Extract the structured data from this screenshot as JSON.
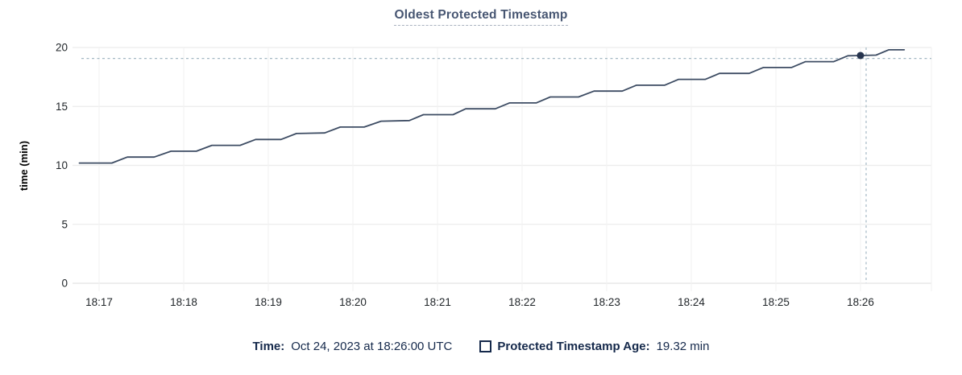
{
  "title": "Oldest Protected Timestamp",
  "colors": {
    "line": "#3d4c63",
    "dot": "#26344e",
    "guideline": "#a3b8c4",
    "grid": "#ececec",
    "grid_vertical": "#f2f2f2",
    "grid_zero": "#e3e3e3",
    "axis_text": "#1f2428",
    "title_text": "#475672",
    "legend_text": "#15294b"
  },
  "legend": {
    "time_label": "Time:",
    "time_value": "Oct 24, 2023 at 18:26:00 UTC",
    "series_label": "Protected Timestamp Age:",
    "series_value": "19.32 min",
    "checkbox_state": "unchecked"
  },
  "chart_data": {
    "type": "line",
    "title": "Oldest Protected Timestamp",
    "xlabel": "",
    "ylabel": "time (min)",
    "ylim": [
      0,
      20
    ],
    "y_ticks": [
      0,
      5,
      10,
      15,
      20
    ],
    "x_ticks": [
      "18:17",
      "18:18",
      "18:19",
      "18:20",
      "18:21",
      "18:22",
      "18:23",
      "18:24",
      "18:25",
      "18:26"
    ],
    "grid": true,
    "legend_position": "bottom",
    "series": [
      {
        "name": "Protected Timestamp Age",
        "unit": "min",
        "points": [
          [
            "18:16:46",
            10.2
          ],
          [
            "18:17:09",
            10.2
          ],
          [
            "18:17:20",
            10.7
          ],
          [
            "18:17:39",
            10.7
          ],
          [
            "18:17:51",
            11.2
          ],
          [
            "18:18:09",
            11.2
          ],
          [
            "18:18:20",
            11.7
          ],
          [
            "18:18:40",
            11.7
          ],
          [
            "18:18:51",
            12.2
          ],
          [
            "18:19:09",
            12.2
          ],
          [
            "18:19:20",
            12.7
          ],
          [
            "18:19:40",
            12.75
          ],
          [
            "18:19:51",
            13.25
          ],
          [
            "18:20:08",
            13.25
          ],
          [
            "18:20:20",
            13.75
          ],
          [
            "18:20:40",
            13.8
          ],
          [
            "18:20:50",
            14.3
          ],
          [
            "18:21:11",
            14.3
          ],
          [
            "18:21:20",
            14.8
          ],
          [
            "18:21:41",
            14.8
          ],
          [
            "18:21:51",
            15.3
          ],
          [
            "18:22:10",
            15.3
          ],
          [
            "18:22:20",
            15.8
          ],
          [
            "18:22:40",
            15.8
          ],
          [
            "18:22:51",
            16.3
          ],
          [
            "18:23:11",
            16.3
          ],
          [
            "18:23:21",
            16.8
          ],
          [
            "18:23:41",
            16.8
          ],
          [
            "18:23:51",
            17.3
          ],
          [
            "18:24:10",
            17.3
          ],
          [
            "18:24:20",
            17.8
          ],
          [
            "18:24:41",
            17.8
          ],
          [
            "18:24:51",
            18.3
          ],
          [
            "18:25:11",
            18.3
          ],
          [
            "18:25:21",
            18.8
          ],
          [
            "18:25:41",
            18.8
          ],
          [
            "18:25:51",
            19.3
          ],
          [
            "18:26:00",
            19.32
          ],
          [
            "18:26:11",
            19.35
          ],
          [
            "18:26:20",
            19.8
          ],
          [
            "18:26:31",
            19.8
          ]
        ]
      }
    ],
    "hover": {
      "time": "18:26:00",
      "value": 19.32,
      "crosshair_time": "18:26:04",
      "crosshair_value": 19.07
    }
  }
}
